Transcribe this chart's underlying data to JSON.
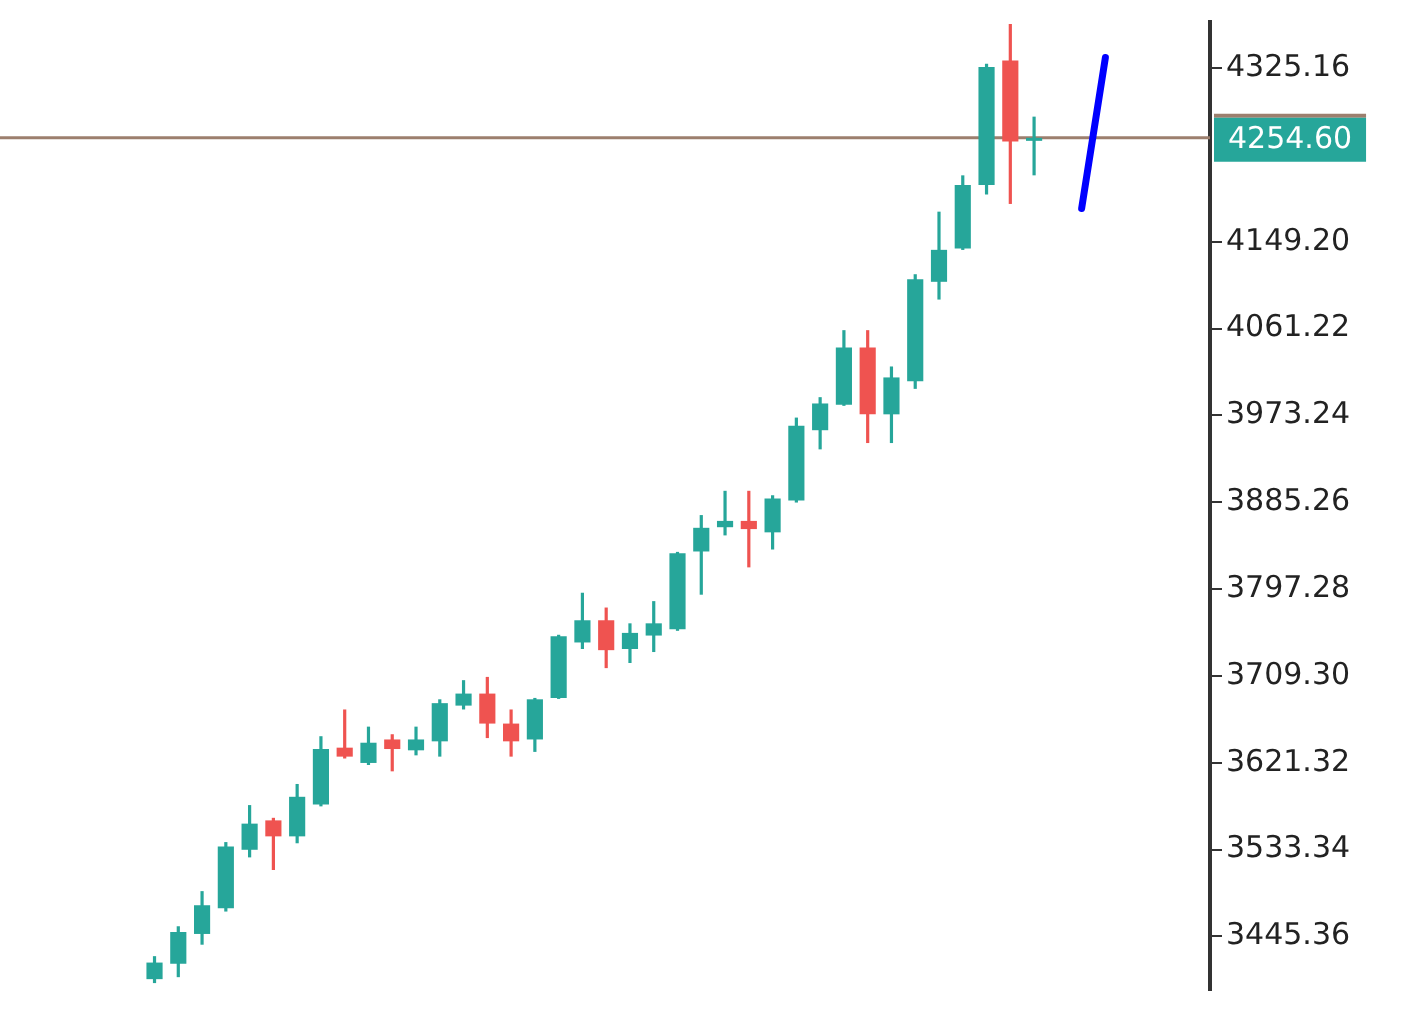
{
  "chart_data": {
    "type": "candlestick",
    "categories": [
      null,
      null,
      null,
      null,
      null,
      null,
      null,
      null,
      null,
      null,
      null,
      null,
      null,
      null,
      null,
      null,
      null,
      null,
      null,
      null,
      null,
      null,
      null,
      null,
      null,
      null,
      null,
      null,
      null,
      null,
      null,
      null,
      null,
      null,
      null,
      null,
      null,
      null,
      null,
      null,
      null
    ],
    "ohlc": [
      [
        3402,
        3425.3,
        3398,
        3418.8
      ],
      [
        3417.6,
        3455.6,
        3404.0,
        3449.8
      ],
      [
        3447.8,
        3491.2,
        3436.9,
        3476.9
      ],
      [
        3473.8,
        3540.9,
        3470.5,
        3536.4
      ],
      [
        3533.1,
        3578.4,
        3525.4,
        3559.6
      ],
      [
        3562.9,
        3565.5,
        3512.6,
        3546.7
      ],
      [
        3546.7,
        3599.8,
        3539.7,
        3586.8
      ],
      [
        3579.0,
        3648.2,
        3577.1,
        3635.2
      ],
      [
        3636.6,
        3675.3,
        3625.6,
        3627.5
      ],
      [
        3621.1,
        3657.9,
        3619.0,
        3641.6
      ],
      [
        3644.9,
        3650.2,
        3612.6,
        3635.2
      ],
      [
        3633.9,
        3657.9,
        3628.8,
        3644.9
      ],
      [
        3643.0,
        3685.6,
        3627.5,
        3681.7
      ],
      [
        3679.2,
        3705.0,
        3675.3,
        3691.4
      ],
      [
        3691.4,
        3708.3,
        3646.3,
        3661.0
      ],
      [
        3661.0,
        3675.3,
        3627.5,
        3643.0
      ],
      [
        3644.9,
        3687.0,
        3632.3,
        3685.6
      ],
      [
        3687.0,
        3751.0,
        3686.0,
        3749.6
      ],
      [
        3743.2,
        3793.6,
        3736.6,
        3765.7
      ],
      [
        3765.7,
        3778.6,
        3717.2,
        3735.4
      ],
      [
        3736.6,
        3762.6,
        3722.4,
        3752.9
      ],
      [
        3750.2,
        3785.1,
        3733.5,
        3762.6
      ],
      [
        3756.7,
        3835.0,
        3755.0,
        3833.5
      ],
      [
        3835.4,
        3872.3,
        3791.6,
        3859.4
      ],
      [
        3860.0,
        3896.9,
        3851.7,
        3866.4
      ],
      [
        3866.4,
        3896.9,
        3819.3,
        3858.1
      ],
      [
        3854.8,
        3892.4,
        3837.4,
        3889.1
      ],
      [
        3887.2,
        3971.1,
        3885.0,
        3962.8
      ],
      [
        3958.3,
        3991.8,
        3938.9,
        3985.4
      ],
      [
        3984.1,
        4059.7,
        3983.0,
        4042.2
      ],
      [
        4042.2,
        4059.7,
        3945.3,
        3974.4
      ],
      [
        3974.4,
        4022.9,
        3945.3,
        4011.8
      ],
      [
        4007.9,
        4116.4,
        4000.2,
        4111.4
      ],
      [
        4108.7,
        4179.8,
        4090.7,
        4141.1
      ],
      [
        4142.4,
        4216.6,
        4141.0,
        4206.9
      ],
      [
        4206.9,
        4329.6,
        4197.3,
        4326.5
      ],
      [
        4332.9,
        4370.0,
        4187.6,
        4250.9
      ],
      [
        4253.0,
        4276.1,
        4216.6,
        4254.6
      ],
      null,
      null,
      null
    ],
    "colors": [
      "#26a69a",
      "#26a69a",
      "#26a69a",
      "#26a69a",
      "#26a69a",
      "#ef5350",
      "#26a69a",
      "#26a69a",
      "#ef5350",
      "#26a69a",
      "#ef5350",
      "#26a69a",
      "#26a69a",
      "#26a69a",
      "#ef5350",
      "#ef5350",
      "#26a69a",
      "#26a69a",
      "#26a69a",
      "#ef5350",
      "#26a69a",
      "#26a69a",
      "#26a69a",
      "#26a69a",
      "#26a69a",
      "#ef5350",
      "#26a69a",
      "#26a69a",
      "#26a69a",
      "#26a69a",
      "#ef5350",
      "#26a69a",
      "#26a69a",
      "#26a69a",
      "#26a69a",
      "#26a69a",
      "#ef5350",
      "#26a69a",
      null,
      null,
      null
    ],
    "series": [
      {
        "type": "line",
        "color": "#0000ff",
        "values": [
          null,
          null,
          null,
          null,
          null,
          null,
          null,
          null,
          null,
          null,
          null,
          null,
          null,
          null,
          null,
          null,
          null,
          null,
          null,
          null,
          null,
          null,
          null,
          null,
          null,
          null,
          null,
          null,
          null,
          null,
          null,
          null,
          null,
          null,
          null,
          null,
          null,
          null,
          null,
          4183,
          4336
        ]
      }
    ],
    "ylim": [
      3391,
      4372
    ],
    "yticks": [
      3445.36,
      3533.34,
      3621.32,
      {
        "value": 3709.3,
        "label": "3709.30"
      },
      3797.28,
      3885.26,
      3973.24,
      4061.22,
      {
        "value": 4149.2,
        "label": "4149.20"
      },
      4325.16
    ],
    "ref_lines": [
      {
        "axis": "y",
        "value": 4254.6,
        "label": "4254.60",
        "color": "#9c7f6e"
      }
    ],
    "tick_labels": "y"
  }
}
